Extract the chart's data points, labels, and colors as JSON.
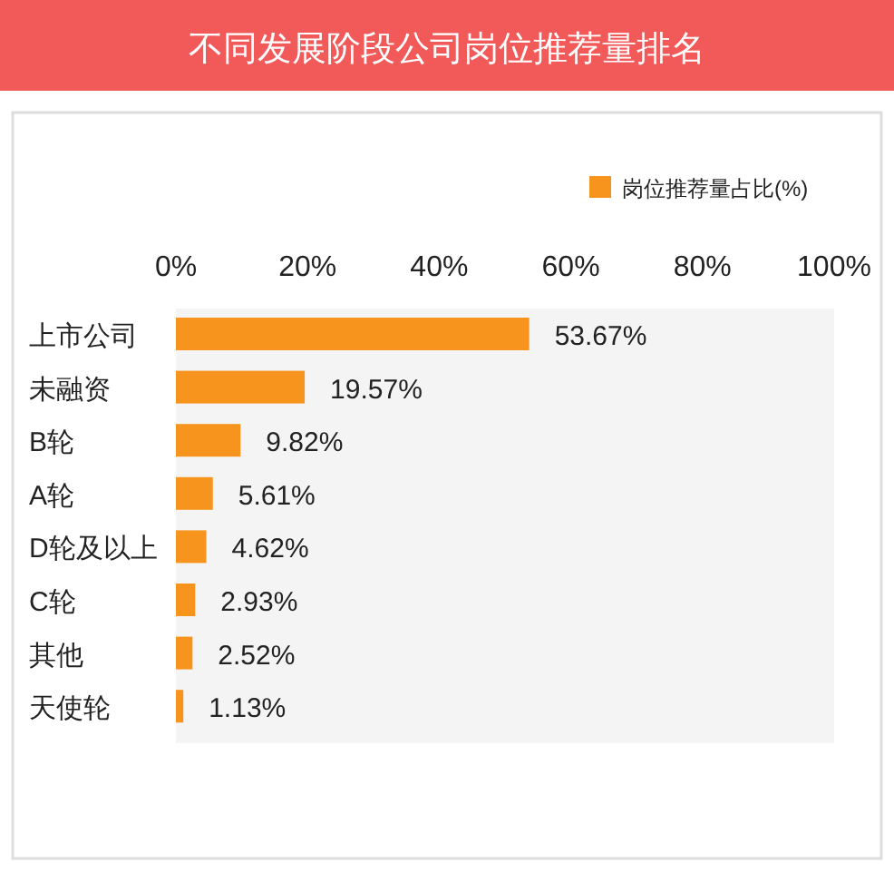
{
  "chart_data": {
    "type": "bar",
    "orientation": "horizontal",
    "title": "不同发展阶段公司岗位推荐量排名",
    "categories": [
      "上市公司",
      "未融资",
      "B轮",
      "A轮",
      "D轮及以上",
      "C轮",
      "其他",
      "天使轮"
    ],
    "series": [
      {
        "name": "岗位推荐量占比(%)",
        "color": "#f7941d",
        "values": [
          53.67,
          19.57,
          9.82,
          5.61,
          4.62,
          2.93,
          2.52,
          1.13
        ],
        "value_labels": [
          "53.67%",
          "19.57%",
          "9.82%",
          "5.61%",
          "4.62%",
          "2.93%",
          "2.52%",
          "1.13%"
        ]
      }
    ],
    "xlim": [
      0,
      100
    ],
    "xticks": [
      {
        "value": 0,
        "label": "0%"
      },
      {
        "value": 20,
        "label": "20%"
      },
      {
        "value": 40,
        "label": "40%"
      },
      {
        "value": 60,
        "label": "60%"
      },
      {
        "value": 80,
        "label": "80%"
      },
      {
        "value": 100,
        "label": "100%"
      }
    ],
    "legend": "top right"
  }
}
